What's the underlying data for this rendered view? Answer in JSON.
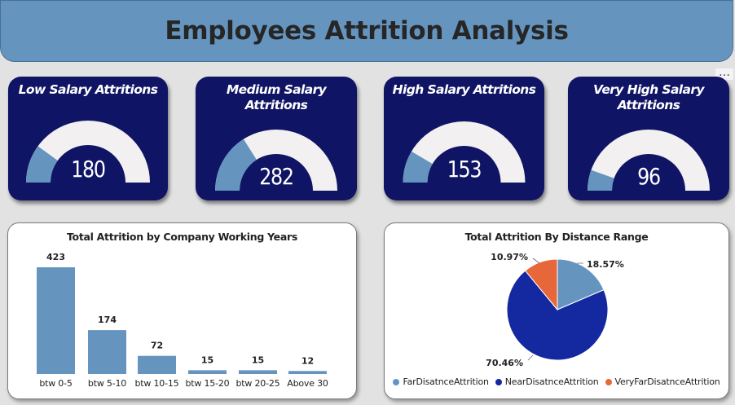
{
  "header": {
    "title": "Employees Attrition Analysis"
  },
  "colors": {
    "header_bg": "#6595bf",
    "card_bg": "#0f1464",
    "gauge_fill": "#6595bf",
    "gauge_track": "#f2f0f0",
    "bar": "#6595bf",
    "pie_far": "#6595bf",
    "pie_near": "#1428a0",
    "pie_veryfar": "#e8673a"
  },
  "gauges": [
    {
      "title": "Low Salary Attritions",
      "value": "180",
      "fraction": 0.2
    },
    {
      "title": "Medium Salary Attritions",
      "value": "282",
      "fraction": 0.32
    },
    {
      "title": "High Salary Attritions",
      "value": "153",
      "fraction": 0.17
    },
    {
      "title": "Very High Salary Attritions",
      "value": "96",
      "fraction": 0.11
    }
  ],
  "chart_data": [
    {
      "type": "bar",
      "title": "Total Attrition by Company Working Years",
      "categories": [
        "btw 0-5",
        "btw 5-10",
        "btw 10-15",
        "btw 15-20",
        "btw 20-25",
        "Above 30"
      ],
      "values": [
        423,
        174,
        72,
        15,
        15,
        12
      ],
      "data_labels": [
        "423",
        "174",
        "72",
        "15",
        "15",
        "12"
      ],
      "ylim": [
        0,
        423
      ],
      "grid": false
    },
    {
      "type": "pie",
      "title": "Total Attrition By Distance Range",
      "labels": [
        "FarDisatnceAttrition",
        "NearDisatnceAttrition",
        "VeryFarDisatnceAttrition"
      ],
      "values": [
        18.57,
        70.46,
        10.97
      ],
      "data_labels": [
        "18.57%",
        "70.46%",
        "10.97%"
      ],
      "legend_position": "bottom"
    }
  ]
}
